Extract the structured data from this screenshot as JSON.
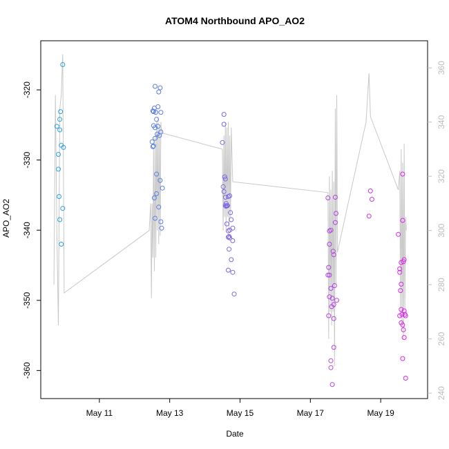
{
  "chart_data": {
    "type": "scatter",
    "title": "ATOM4 Northbound APO_AO2",
    "xlabel": "Date",
    "ylabel": "APO_AO2",
    "x_ticks": [
      "May 11",
      "May 13",
      "May 15",
      "May 17",
      "May 19"
    ],
    "y_ticks": [
      "-360",
      "-350",
      "-340",
      "-330",
      "-320"
    ],
    "y2_ticks": [
      "240",
      "260",
      "280",
      "300",
      "320",
      "340",
      "360"
    ],
    "xlim": [
      "2016-05-09T08:00",
      "2016-05-20T08:00"
    ],
    "ylim": [
      -364,
      -313
    ],
    "y2lim": [
      238,
      370
    ],
    "grid": false,
    "secondary_line_color": "#c8c8c8",
    "point_color_gradient": [
      "#1ea8e6",
      "#e61ee6"
    ],
    "series": [
      {
        "type": "scatter",
        "points": [
          [
            "2016-05-09T19:00",
            -325.2
          ],
          [
            "2016-05-09T20:00",
            -329.2
          ],
          [
            "2016-05-09T20:00",
            -331.3
          ],
          [
            "2016-05-09T21:00",
            -325.7
          ],
          [
            "2016-05-09T21:00",
            -324.2
          ],
          [
            "2016-05-09T21:30",
            -323.1
          ],
          [
            "2016-05-09T20:30",
            -335.2
          ],
          [
            "2016-05-09T21:00",
            -338.5
          ],
          [
            "2016-05-09T22:00",
            -342.0
          ],
          [
            "2016-05-09T22:00",
            -327.9
          ],
          [
            "2016-05-09T23:00",
            -316.4
          ],
          [
            "2016-05-09T23:30",
            -328.2
          ],
          [
            "2016-05-09T23:00",
            -336.9
          ],
          [
            "2016-05-12T12:00",
            -327.4
          ],
          [
            "2016-05-12T12:30",
            -323.0
          ],
          [
            "2016-05-12T13:00",
            -328.0
          ],
          [
            "2016-05-12T13:30",
            -322.6
          ],
          [
            "2016-05-12T14:00",
            -319.5
          ],
          [
            "2016-05-12T14:00",
            -325.4
          ],
          [
            "2016-05-12T14:30",
            -323.2
          ],
          [
            "2016-05-12T15:00",
            -324.2
          ],
          [
            "2016-05-12T15:30",
            -326.3
          ],
          [
            "2016-05-12T16:00",
            -322.4
          ],
          [
            "2016-05-12T16:30",
            -320.3
          ],
          [
            "2016-05-12T17:00",
            -326.5
          ],
          [
            "2016-05-12T17:30",
            -319.7
          ],
          [
            "2016-05-12T18:00",
            -323.2
          ],
          [
            "2016-05-12T18:00",
            -326.0
          ],
          [
            "2016-05-12T13:00",
            -325.1
          ],
          [
            "2016-05-12T14:00",
            -326.9
          ],
          [
            "2016-05-12T14:00",
            -338.3
          ],
          [
            "2016-05-12T13:30",
            -335.4
          ],
          [
            "2016-05-12T15:00",
            -332.0
          ],
          [
            "2016-05-12T15:00",
            -334.8
          ],
          [
            "2016-05-12T16:30",
            -336.7
          ],
          [
            "2016-05-12T17:30",
            -332.9
          ],
          [
            "2016-05-12T18:00",
            -338.8
          ],
          [
            "2016-05-12T18:30",
            -339.7
          ],
          [
            "2016-05-12T19:00",
            -334.0
          ],
          [
            "2016-05-12T16:00",
            -325.2
          ],
          [
            "2016-05-12T12:30",
            -328.1
          ],
          [
            "2016-05-12T13:00",
            -323.1
          ],
          [
            "2016-05-14T12:00",
            -327.5
          ],
          [
            "2016-05-14T13:00",
            -323.5
          ],
          [
            "2016-05-14T13:00",
            -324.9
          ],
          [
            "2016-05-14T12:30",
            -333.8
          ],
          [
            "2016-05-14T14:00",
            -332.7
          ],
          [
            "2016-05-14T13:30",
            -332.4
          ],
          [
            "2016-05-14T14:00",
            -335.3
          ],
          [
            "2016-05-14T14:30",
            -336.2
          ],
          [
            "2016-05-14T14:30",
            -336.6
          ],
          [
            "2016-05-14T15:00",
            -336.5
          ],
          [
            "2016-05-14T16:00",
            -335.2
          ],
          [
            "2016-05-14T17:00",
            -335.1
          ],
          [
            "2016-05-14T13:00",
            -334.5
          ],
          [
            "2016-05-14T15:00",
            -339.1
          ],
          [
            "2016-05-14T16:00",
            -340.1
          ],
          [
            "2016-05-14T16:30",
            -340.9
          ],
          [
            "2016-05-14T17:00",
            -341.1
          ],
          [
            "2016-05-14T16:00",
            -341.0
          ],
          [
            "2016-05-14T17:30",
            -337.5
          ],
          [
            "2016-05-14T18:00",
            -338.5
          ],
          [
            "2016-05-14T19:00",
            -339.7
          ],
          [
            "2016-05-14T16:30",
            -342.7
          ],
          [
            "2016-05-14T19:00",
            -341.5
          ],
          [
            "2016-05-14T18:00",
            -344.2
          ],
          [
            "2016-05-14T16:00",
            -345.7
          ],
          [
            "2016-05-14T19:00",
            -346.0
          ],
          [
            "2016-05-14T20:00",
            -349.1
          ],
          [
            "2016-05-14T15:30",
            -336.5
          ],
          [
            "2016-05-14T17:00",
            -340.0
          ],
          [
            "2016-05-14T14:00",
            -336.5
          ],
          [
            "2016-05-17T12:00",
            -335.4
          ],
          [
            "2016-05-17T13:00",
            -342.0
          ],
          [
            "2016-05-17T13:00",
            -340.1
          ],
          [
            "2016-05-17T14:00",
            -340.0
          ],
          [
            "2016-05-17T12:30",
            -345.3
          ],
          [
            "2016-05-17T13:00",
            -346.4
          ],
          [
            "2016-05-17T14:00",
            -348.3
          ],
          [
            "2016-05-17T14:30",
            -350.9
          ],
          [
            "2016-05-17T12:00",
            -346.4
          ],
          [
            "2016-05-17T13:00",
            -349.5
          ],
          [
            "2016-05-17T12:30",
            -352.2
          ],
          [
            "2016-05-17T15:00",
            -349.7
          ],
          [
            "2016-05-17T16:00",
            -350.6
          ],
          [
            "2016-05-17T15:30",
            -343.0
          ],
          [
            "2016-05-17T16:00",
            -343.5
          ],
          [
            "2016-05-17T17:00",
            -338.9
          ],
          [
            "2016-05-17T17:30",
            -337.6
          ],
          [
            "2016-05-17T17:00",
            -335.3
          ],
          [
            "2016-05-17T16:30",
            -347.9
          ],
          [
            "2016-05-17T18:00",
            -350.0
          ],
          [
            "2016-05-17T16:00",
            -352.6
          ],
          [
            "2016-05-17T16:00",
            -356.7
          ],
          [
            "2016-05-17T14:00",
            -358.6
          ],
          [
            "2016-05-17T14:00",
            -359.6
          ],
          [
            "2016-05-17T15:00",
            -362.0
          ],
          [
            "2016-05-18T16:00",
            -338.0
          ],
          [
            "2016-05-18T17:00",
            -334.4
          ],
          [
            "2016-05-18T18:00",
            -335.6
          ],
          [
            "2016-05-19T12:00",
            -340.6
          ],
          [
            "2016-05-19T13:00",
            -345.5
          ],
          [
            "2016-05-19T13:00",
            -346.0
          ],
          [
            "2016-05-19T14:00",
            -344.6
          ],
          [
            "2016-05-19T14:00",
            -347.7
          ],
          [
            "2016-05-19T13:30",
            -348.6
          ],
          [
            "2016-05-19T13:00",
            -352.2
          ],
          [
            "2016-05-19T14:00",
            -351.3
          ],
          [
            "2016-05-19T14:30",
            -352.0
          ],
          [
            "2016-05-19T14:00",
            -353.2
          ],
          [
            "2016-05-19T15:00",
            -353.5
          ],
          [
            "2016-05-19T15:30",
            -354.2
          ],
          [
            "2016-05-19T16:00",
            -351.5
          ],
          [
            "2016-05-19T16:30",
            -352.0
          ],
          [
            "2016-05-19T17:00",
            -352.2
          ],
          [
            "2016-05-19T16:00",
            -355.3
          ],
          [
            "2016-05-19T15:00",
            -358.3
          ],
          [
            "2016-05-19T17:00",
            -361.1
          ],
          [
            "2016-05-19T15:00",
            -338.6
          ],
          [
            "2016-05-19T15:00",
            -332.0
          ],
          [
            "2016-05-19T16:00",
            -344.2
          ],
          [
            "2016-05-19T15:30",
            -344.5
          ]
        ]
      },
      {
        "type": "line",
        "axis": "right",
        "points": [
          [
            "2016-05-09T17:00",
            280
          ],
          [
            "2016-05-09T18:00",
            350
          ],
          [
            "2016-05-09T19:00",
            300
          ],
          [
            "2016-05-09T20:00",
            265
          ],
          [
            "2016-05-09T21:00",
            345
          ],
          [
            "2016-05-09T22:00",
            350
          ],
          [
            "2016-05-09T23:00",
            365
          ],
          [
            "2016-05-10T00:00",
            277
          ],
          [
            "2016-05-12T10:00",
            300
          ],
          [
            "2016-05-12T11:00",
            310
          ],
          [
            "2016-05-12T11:30",
            275
          ],
          [
            "2016-05-12T12:00",
            310
          ],
          [
            "2016-05-12T12:30",
            290
          ],
          [
            "2016-05-12T13:00",
            330
          ],
          [
            "2016-05-12T13:30",
            285
          ],
          [
            "2016-05-12T14:00",
            335
          ],
          [
            "2016-05-12T14:30",
            290
          ],
          [
            "2016-05-12T15:00",
            340
          ],
          [
            "2016-05-12T15:30",
            300
          ],
          [
            "2016-05-12T16:00",
            342
          ],
          [
            "2016-05-12T16:30",
            295
          ],
          [
            "2016-05-12T17:00",
            338
          ],
          [
            "2016-05-12T17:30",
            298
          ],
          [
            "2016-05-12T18:00",
            340
          ],
          [
            "2016-05-12T18:30",
            336
          ],
          [
            "2016-05-14T12:00",
            330
          ],
          [
            "2016-05-14T12:30",
            300
          ],
          [
            "2016-05-14T13:00",
            335
          ],
          [
            "2016-05-14T13:30",
            305
          ],
          [
            "2016-05-14T14:00",
            340
          ],
          [
            "2016-05-14T14:30",
            300
          ],
          [
            "2016-05-14T15:00",
            338
          ],
          [
            "2016-05-14T15:30",
            305
          ],
          [
            "2016-05-14T16:00",
            340
          ],
          [
            "2016-05-14T16:30",
            300
          ],
          [
            "2016-05-14T17:00",
            335
          ],
          [
            "2016-05-14T17:30",
            305
          ],
          [
            "2016-05-14T18:00",
            338
          ],
          [
            "2016-05-14T19:00",
            318
          ],
          [
            "2016-05-17T12:00",
            314
          ],
          [
            "2016-05-17T12:30",
            260
          ],
          [
            "2016-05-17T13:00",
            320
          ],
          [
            "2016-05-17T13:30",
            270
          ],
          [
            "2016-05-17T14:00",
            315
          ],
          [
            "2016-05-17T14:30",
            265
          ],
          [
            "2016-05-17T15:00",
            322
          ],
          [
            "2016-05-17T15:30",
            270
          ],
          [
            "2016-05-17T16:00",
            318
          ],
          [
            "2016-05-17T16:30",
            250
          ],
          [
            "2016-05-17T17:00",
            345
          ],
          [
            "2016-05-17T17:30",
            280
          ],
          [
            "2016-05-17T18:00",
            350
          ],
          [
            "2016-05-17T18:30",
            292
          ],
          [
            "2016-05-18T14:00",
            340
          ],
          [
            "2016-05-18T16:00",
            358
          ],
          [
            "2016-05-18T17:00",
            342
          ],
          [
            "2016-05-19T12:00",
            315
          ],
          [
            "2016-05-19T13:00",
            322
          ],
          [
            "2016-05-19T13:30",
            270
          ],
          [
            "2016-05-19T14:00",
            330
          ],
          [
            "2016-05-19T14:30",
            265
          ],
          [
            "2016-05-19T15:00",
            325
          ],
          [
            "2016-05-19T15:30",
            260
          ],
          [
            "2016-05-19T16:00",
            332
          ],
          [
            "2016-05-19T16:30",
            270
          ],
          [
            "2016-05-19T17:00",
            305
          ],
          [
            "2016-05-19T17:30",
            300
          ]
        ]
      }
    ]
  }
}
